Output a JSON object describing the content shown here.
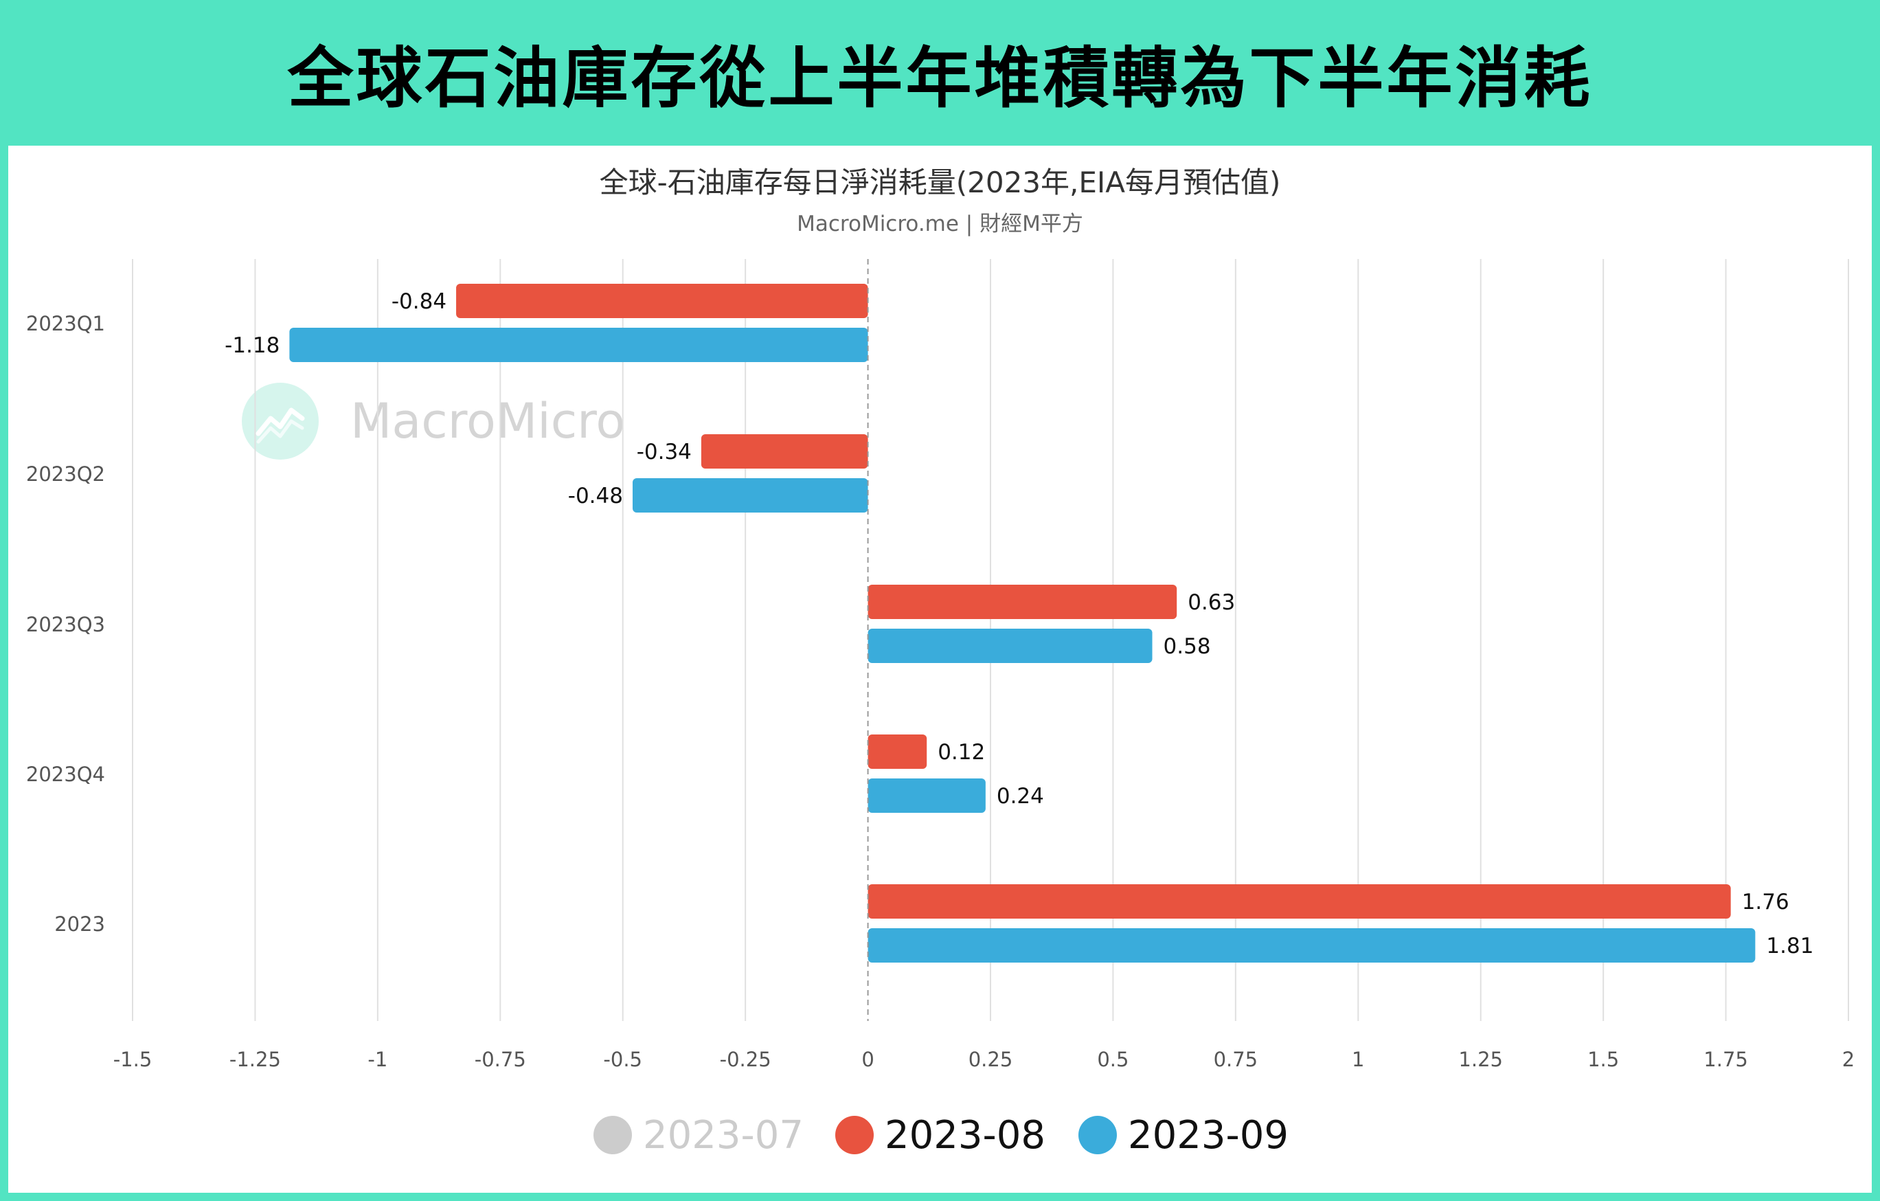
{
  "banner_title": "全球石油庫存從上半年堆積轉為下半年消耗",
  "chart_data": {
    "type": "bar",
    "orientation": "horizontal",
    "title": "全球-石油庫存每日淨消耗量(2023年,EIA每月預估值)",
    "subtitle": "MacroMicro.me | 財經M平方",
    "categories": [
      "2023Q1",
      "2023Q2",
      "2023Q3",
      "2023Q4",
      "2023"
    ],
    "series": [
      {
        "name": "2023-07",
        "color": "#cccccc",
        "visible": false,
        "values": null
      },
      {
        "name": "2023-08",
        "color": "#e8533f",
        "visible": true,
        "values": [
          -0.84,
          -0.34,
          0.63,
          0.12,
          1.76
        ]
      },
      {
        "name": "2023-09",
        "color": "#3aacdb",
        "visible": true,
        "values": [
          -1.18,
          -0.48,
          0.58,
          0.24,
          1.81
        ]
      }
    ],
    "value_labels": {
      "2023-08": [
        "-0.84",
        "-0.34",
        "0.63",
        "0.12",
        "1.76"
      ],
      "2023-09": [
        "-1.18",
        "-0.48",
        "0.58",
        "0.24",
        "1.81"
      ]
    },
    "xlim": [
      -1.5,
      2
    ],
    "xticks": [
      "-1.5",
      "-1.25",
      "-1",
      "-0.75",
      "-0.5",
      "-0.25",
      "0",
      "0.25",
      "0.5",
      "0.75",
      "1",
      "1.25",
      "1.5",
      "1.75",
      "2"
    ],
    "xtick_values": [
      -1.5,
      -1.25,
      -1,
      -0.75,
      -0.5,
      -0.25,
      0,
      0.25,
      0.5,
      0.75,
      1,
      1.25,
      1.5,
      1.75,
      2
    ],
    "grid": true,
    "legend_position": "bottom-center",
    "watermark": "MacroMicro"
  },
  "colors": {
    "banner_background": "#52e4c2",
    "panel_background": "#ffffff",
    "gridline": "#e0e0e0",
    "zero_line": "#999999"
  }
}
